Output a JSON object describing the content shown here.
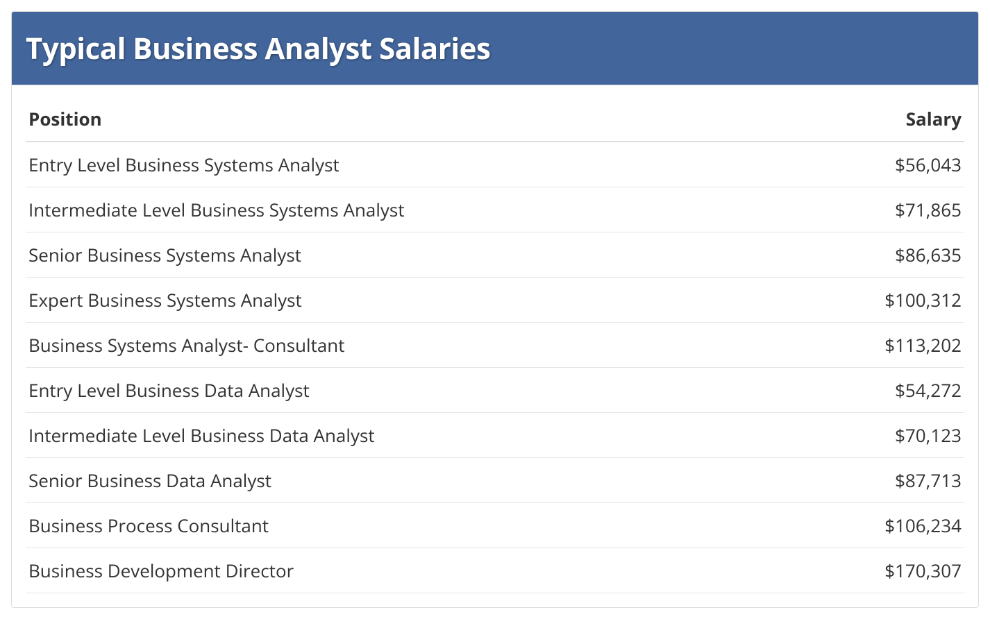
{
  "type": "table",
  "title": "Typical Business Analyst Salaries",
  "header_background_color": "#42659b",
  "header_text_color": "#ffffff",
  "title_fontsize": 42,
  "title_fontweight": 700,
  "body_background_color": "#ffffff",
  "body_text_color": "#333333",
  "body_fontsize": 26,
  "border_color": "#dddddd",
  "row_border_color": "#e5e5e5",
  "columns": [
    {
      "label": "Position",
      "align": "left"
    },
    {
      "label": "Salary",
      "align": "right"
    }
  ],
  "rows": [
    {
      "position": "Entry Level Business Systems Analyst",
      "salary": "$56,043"
    },
    {
      "position": "Intermediate Level Business Systems Analyst",
      "salary": "$71,865"
    },
    {
      "position": "Senior Business Systems Analyst",
      "salary": "$86,635"
    },
    {
      "position": "Expert Business Systems Analyst",
      "salary": "$100,312"
    },
    {
      "position": "Business Systems Analyst- Consultant",
      "salary": "$113,202"
    },
    {
      "position": "Entry Level Business Data Analyst",
      "salary": "$54,272"
    },
    {
      "position": "Intermediate Level Business Data Analyst",
      "salary": "$70,123"
    },
    {
      "position": "Senior Business Data Analyst",
      "salary": "$87,713"
    },
    {
      "position": "Business Process Consultant",
      "salary": "$106,234"
    },
    {
      "position": "Business Development Director",
      "salary": "$170,307"
    }
  ]
}
